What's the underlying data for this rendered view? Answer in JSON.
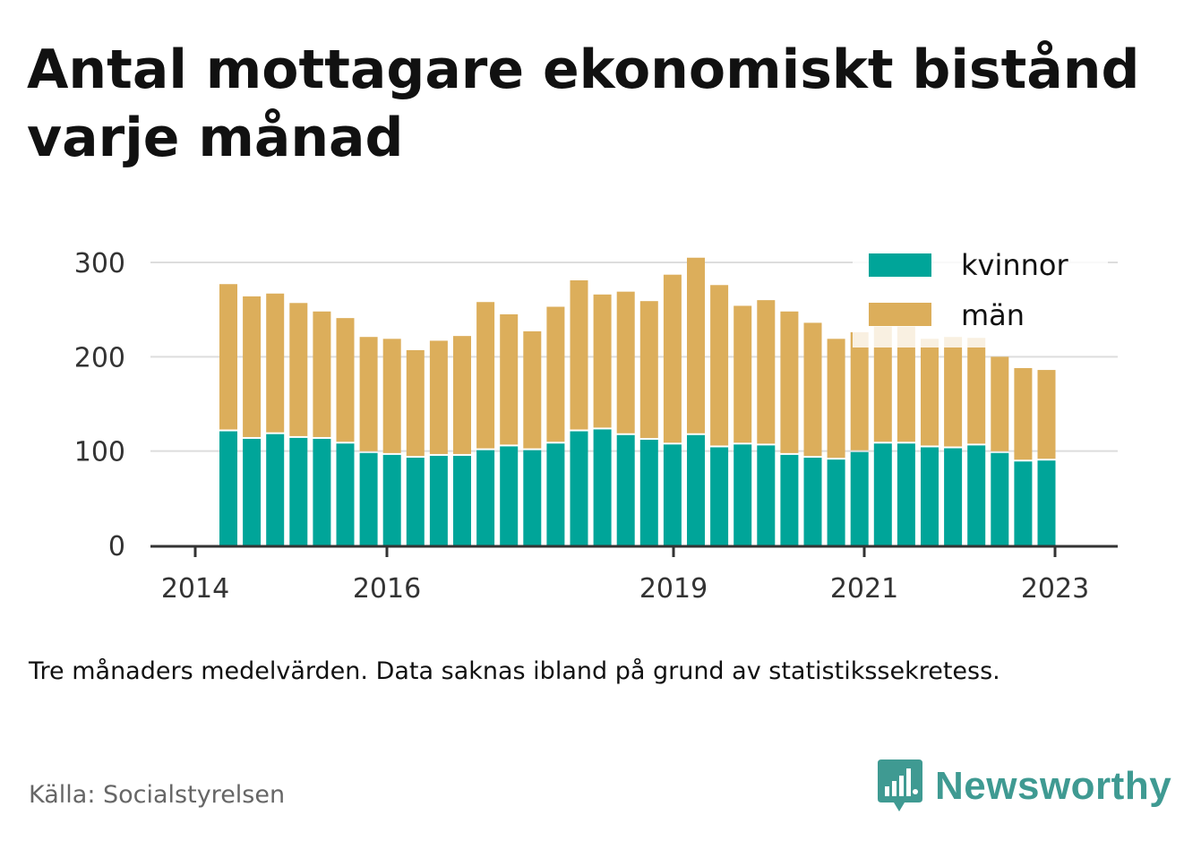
{
  "title": "Antal mottagare ekonomiskt bistånd varje månad",
  "note": "Tre månaders medelvärden. Data saknas ibland på grund av statistikssekretess.",
  "source": "Källa: Socialstyrelsen",
  "brand": {
    "name": "Newsworthy",
    "icon": "newsworthy-logo-icon"
  },
  "colors": {
    "kvinnor": "#00a599",
    "man": "#dcae5b",
    "grid": "#dddddd",
    "axis": "#333333",
    "brand": "#3f9a92"
  },
  "chart_data": {
    "type": "bar",
    "stacked": true,
    "title": "Antal mottagare ekonomiskt bistånd varje månad",
    "xlabel": "",
    "ylabel": "",
    "ylim": [
      0,
      300
    ],
    "yticks": [
      "0",
      "100",
      "200",
      "300"
    ],
    "xticks": [
      "2014",
      "2016",
      "2019",
      "2021",
      "2023"
    ],
    "grid": true,
    "legend_position": "top-right",
    "categories": [
      "2014-Q2",
      "2014-Q3",
      "2014-Q4",
      "2015-Q1",
      "2015-Q2",
      "2015-Q3",
      "2015-Q4",
      "2016-Q1",
      "2016-Q2",
      "2016-Q3",
      "2016-Q4",
      "2017-Q1",
      "2017-Q2",
      "2017-Q3",
      "2017-Q4",
      "2018-Q1",
      "2018-Q2",
      "2018-Q3",
      "2018-Q4",
      "2019-Q1",
      "2019-Q2",
      "2019-Q3",
      "2019-Q4",
      "2020-Q1",
      "2020-Q2",
      "2020-Q3",
      "2020-Q4",
      "2021-Q1",
      "2021-Q2",
      "2021-Q3",
      "2021-Q4",
      "2022-Q1",
      "2022-Q2",
      "2022-Q3",
      "2022-Q4",
      "2023-Q1"
    ],
    "series": [
      {
        "name": "kvinnor",
        "values": [
          121,
          113,
          118,
          114,
          113,
          108,
          98,
          96,
          93,
          95,
          95,
          101,
          105,
          101,
          108,
          121,
          123,
          117,
          112,
          107,
          117,
          104,
          107,
          106,
          96,
          93,
          91,
          99,
          108,
          108,
          104,
          103,
          106,
          98,
          89,
          90
        ]
      },
      {
        "name": "män",
        "values": [
          156,
          151,
          149,
          143,
          135,
          133,
          123,
          123,
          114,
          122,
          127,
          157,
          140,
          126,
          145,
          160,
          143,
          152,
          147,
          180,
          188,
          172,
          147,
          154,
          152,
          143,
          128,
          127,
          124,
          124,
          115,
          118,
          114,
          102,
          99,
          96
        ]
      }
    ]
  }
}
